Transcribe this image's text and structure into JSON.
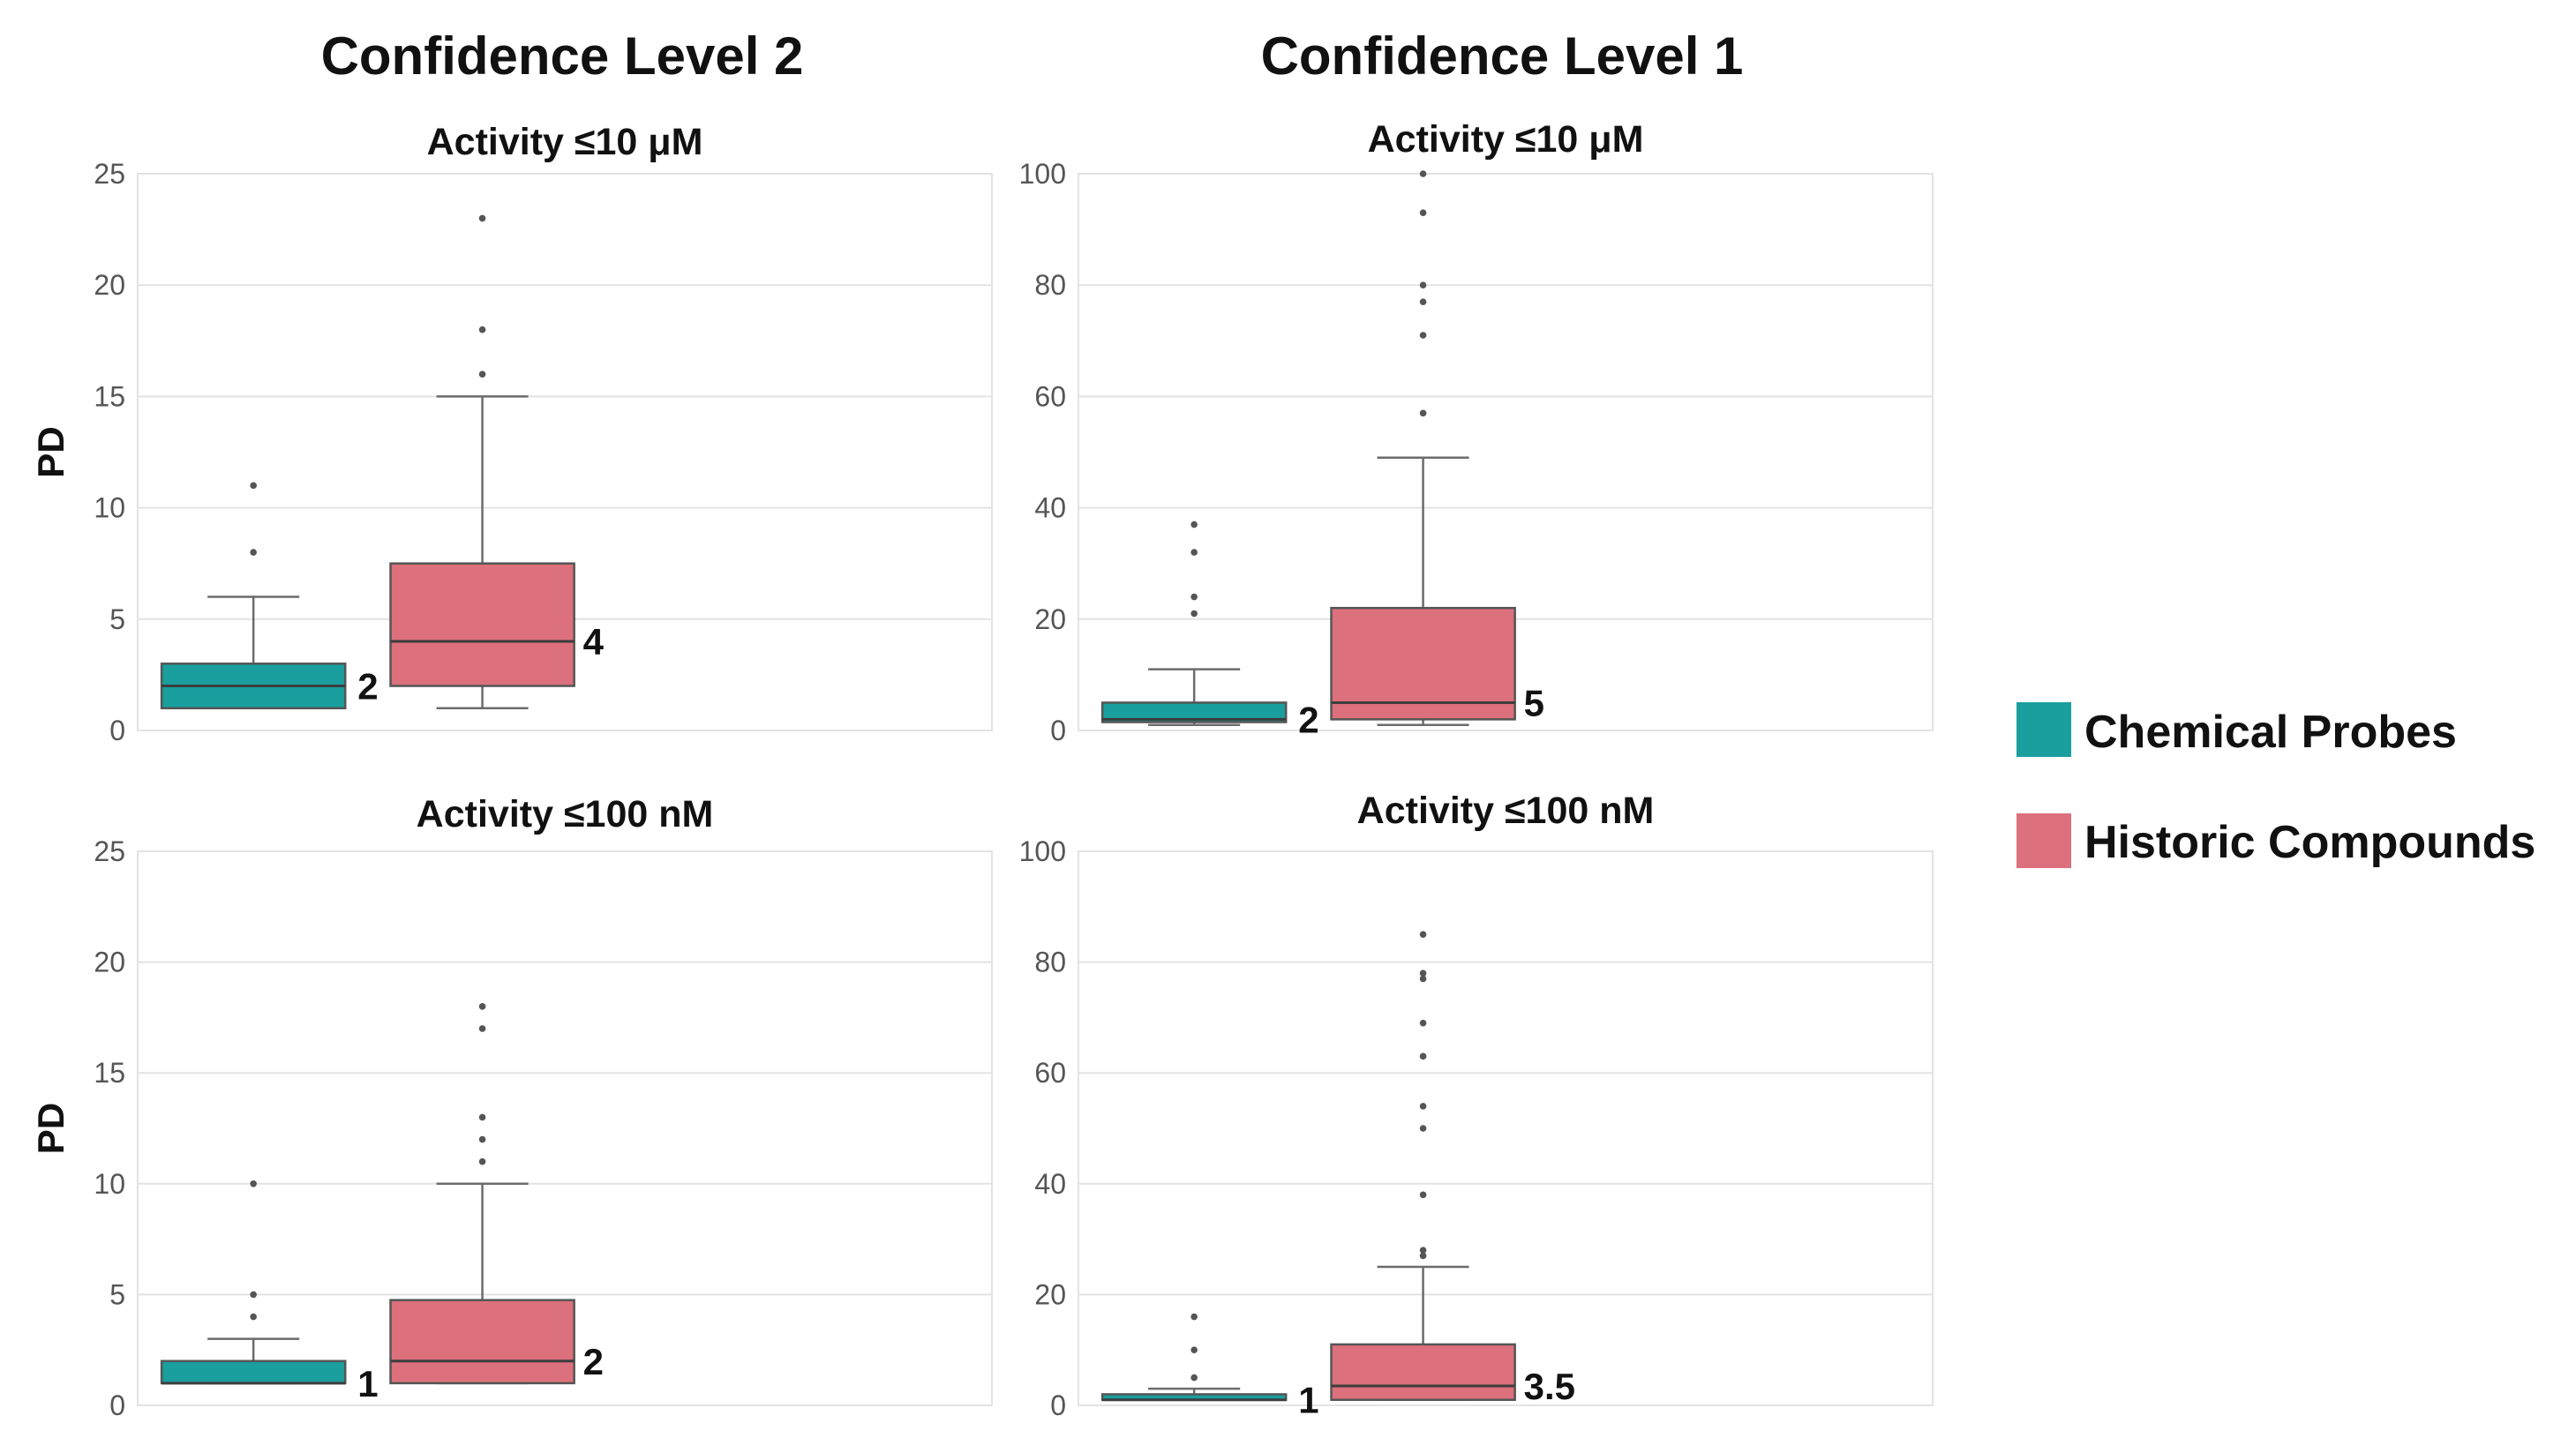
{
  "column_titles": [
    "Confidence Level 2",
    "Confidence Level 1"
  ],
  "legend": [
    {
      "label": "Chemical Probes",
      "color": "#1a9e9e"
    },
    {
      "label": "Historic Compounds",
      "color": "#dc707c"
    }
  ],
  "chart_data": [
    {
      "type": "box",
      "title": "Activity ≤10 μM",
      "column": "Confidence Level 2",
      "ylabel": "PD",
      "ylim": [
        0,
        25
      ],
      "yticks": [
        0,
        5,
        10,
        15,
        20,
        25
      ],
      "tick_labels": [
        "0",
        "5",
        "10",
        "15",
        "20",
        "25"
      ],
      "series": [
        {
          "name": "Chemical Probes",
          "q1": 1,
          "median": 2,
          "q3": 3,
          "whisker_low": 1,
          "whisker_high": 6,
          "outliers": [
            8,
            11
          ],
          "median_label": "2"
        },
        {
          "name": "Historic Compounds",
          "q1": 2,
          "median": 4,
          "q3": 7.5,
          "whisker_low": 1,
          "whisker_high": 15,
          "outliers": [
            16,
            18,
            23
          ],
          "median_label": "4"
        }
      ]
    },
    {
      "type": "box",
      "title": "Activity ≤10 μM",
      "column": "Confidence Level 1",
      "ylabel": "",
      "ylim": [
        0,
        100
      ],
      "yticks": [
        0,
        20,
        40,
        60,
        80,
        100
      ],
      "tick_labels": [
        "0",
        "20",
        "40",
        "60",
        "80",
        "100"
      ],
      "series": [
        {
          "name": "Chemical Probes",
          "q1": 1.5,
          "median": 2,
          "q3": 5,
          "whisker_low": 1,
          "whisker_high": 11,
          "outliers": [
            21,
            24,
            32,
            37
          ],
          "median_label": "2"
        },
        {
          "name": "Historic Compounds",
          "q1": 2,
          "median": 5,
          "q3": 22,
          "whisker_low": 1,
          "whisker_high": 49,
          "outliers": [
            57,
            71,
            77,
            80,
            93,
            100
          ],
          "median_label": "5"
        }
      ]
    },
    {
      "type": "box",
      "title": "Activity ≤100 nM",
      "column": "Confidence Level 2",
      "ylabel": "PD",
      "ylim": [
        0,
        25
      ],
      "yticks": [
        0,
        5,
        10,
        15,
        20,
        25
      ],
      "tick_labels": [
        "0",
        "5",
        "10",
        "15",
        "20",
        "25"
      ],
      "series": [
        {
          "name": "Chemical Probes",
          "q1": 1,
          "median": 1,
          "q3": 2,
          "whisker_low": 1,
          "whisker_high": 3,
          "outliers": [
            4,
            5,
            10
          ],
          "median_label": "1"
        },
        {
          "name": "Historic Compounds",
          "q1": 1,
          "median": 2,
          "q3": 4.75,
          "whisker_low": 1,
          "whisker_high": 10,
          "outliers": [
            11,
            12,
            13,
            17,
            18
          ],
          "median_label": "2"
        }
      ]
    },
    {
      "type": "box",
      "title": "Activity ≤100 nM",
      "column": "Confidence Level 1",
      "ylabel": "",
      "ylim": [
        0,
        100
      ],
      "yticks": [
        0,
        20,
        40,
        60,
        80,
        100
      ],
      "tick_labels": [
        "0",
        "20",
        "40",
        "60",
        "80",
        "100"
      ],
      "series": [
        {
          "name": "Chemical Probes",
          "q1": 1,
          "median": 1,
          "q3": 2,
          "whisker_low": 1,
          "whisker_high": 3,
          "outliers": [
            5,
            10,
            16
          ],
          "median_label": "1"
        },
        {
          "name": "Historic Compounds",
          "q1": 1,
          "median": 3.5,
          "q3": 11,
          "whisker_low": 1,
          "whisker_high": 25,
          "outliers": [
            27,
            28,
            38,
            50,
            54,
            63,
            69,
            77,
            78,
            85
          ],
          "median_label": "3.5"
        }
      ]
    }
  ]
}
